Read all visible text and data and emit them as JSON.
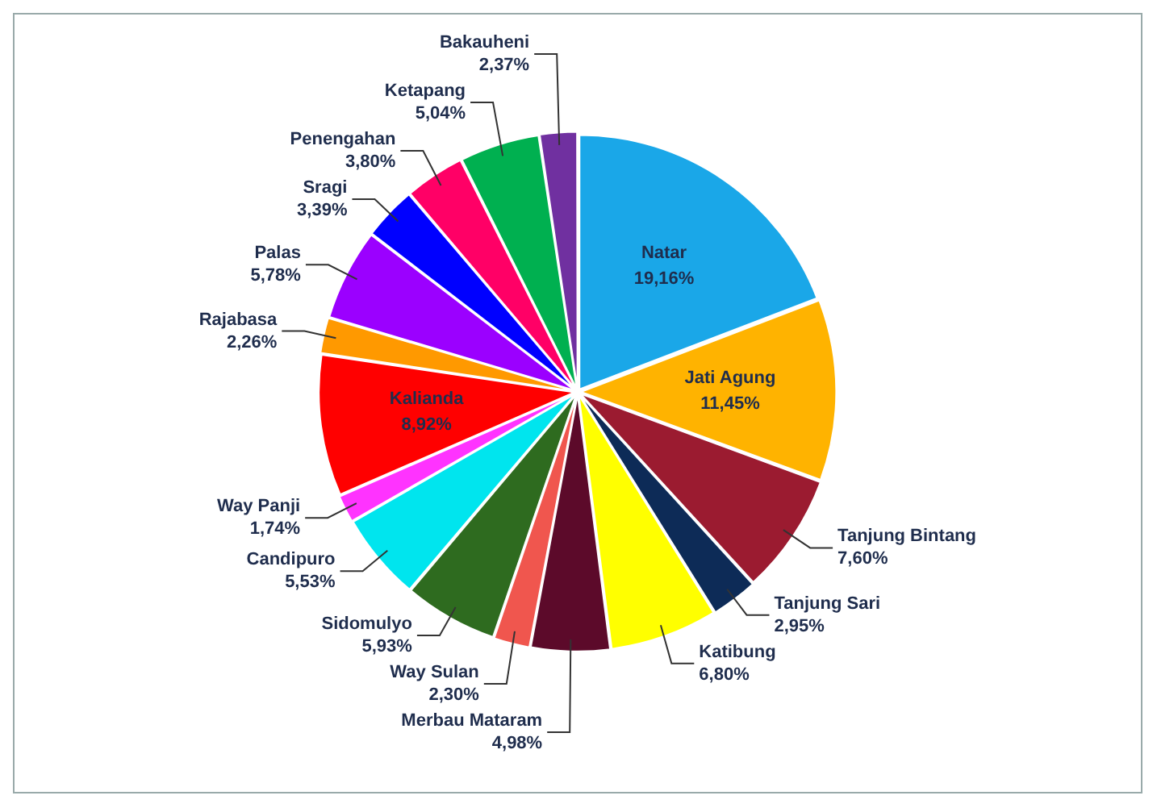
{
  "chart_data": {
    "type": "pie",
    "categories": [
      "Natar",
      "Jati Agung",
      "Tanjung Bintang",
      "Tanjung Sari",
      "Katibung",
      "Merbau Mataram",
      "Way Sulan",
      "Sidomulyo",
      "Candipuro",
      "Way Panji",
      "Kalianda",
      "Rajabasa",
      "Palas",
      "Sragi",
      "Penengahan",
      "Ketapang",
      "Bakauheni"
    ],
    "values": [
      19.16,
      11.45,
      7.6,
      2.95,
      6.8,
      4.98,
      2.3,
      5.93,
      5.53,
      1.74,
      8.92,
      2.26,
      5.78,
      3.39,
      3.8,
      5.04,
      2.37
    ],
    "value_labels": [
      "19,16%",
      "11,45%",
      "7,60%",
      "2,95%",
      "6,80%",
      "4,98%",
      "2,30%",
      "5,93%",
      "5,53%",
      "1,74%",
      "8,92%",
      "2,26%",
      "5,78%",
      "3,39%",
      "3,80%",
      "5,04%",
      "2,37%"
    ],
    "colors": [
      "#1aa7e8",
      "#ffb300",
      "#9b1b30",
      "#0d2b57",
      "#ffff00",
      "#5c0a2a",
      "#f0564e",
      "#2e6b1f",
      "#00e5ee",
      "#ff33ff",
      "#ff0000",
      "#ff9900",
      "#9b00ff",
      "#0000ff",
      "#ff0066",
      "#00b050",
      "#7030a0"
    ],
    "legend": false
  }
}
